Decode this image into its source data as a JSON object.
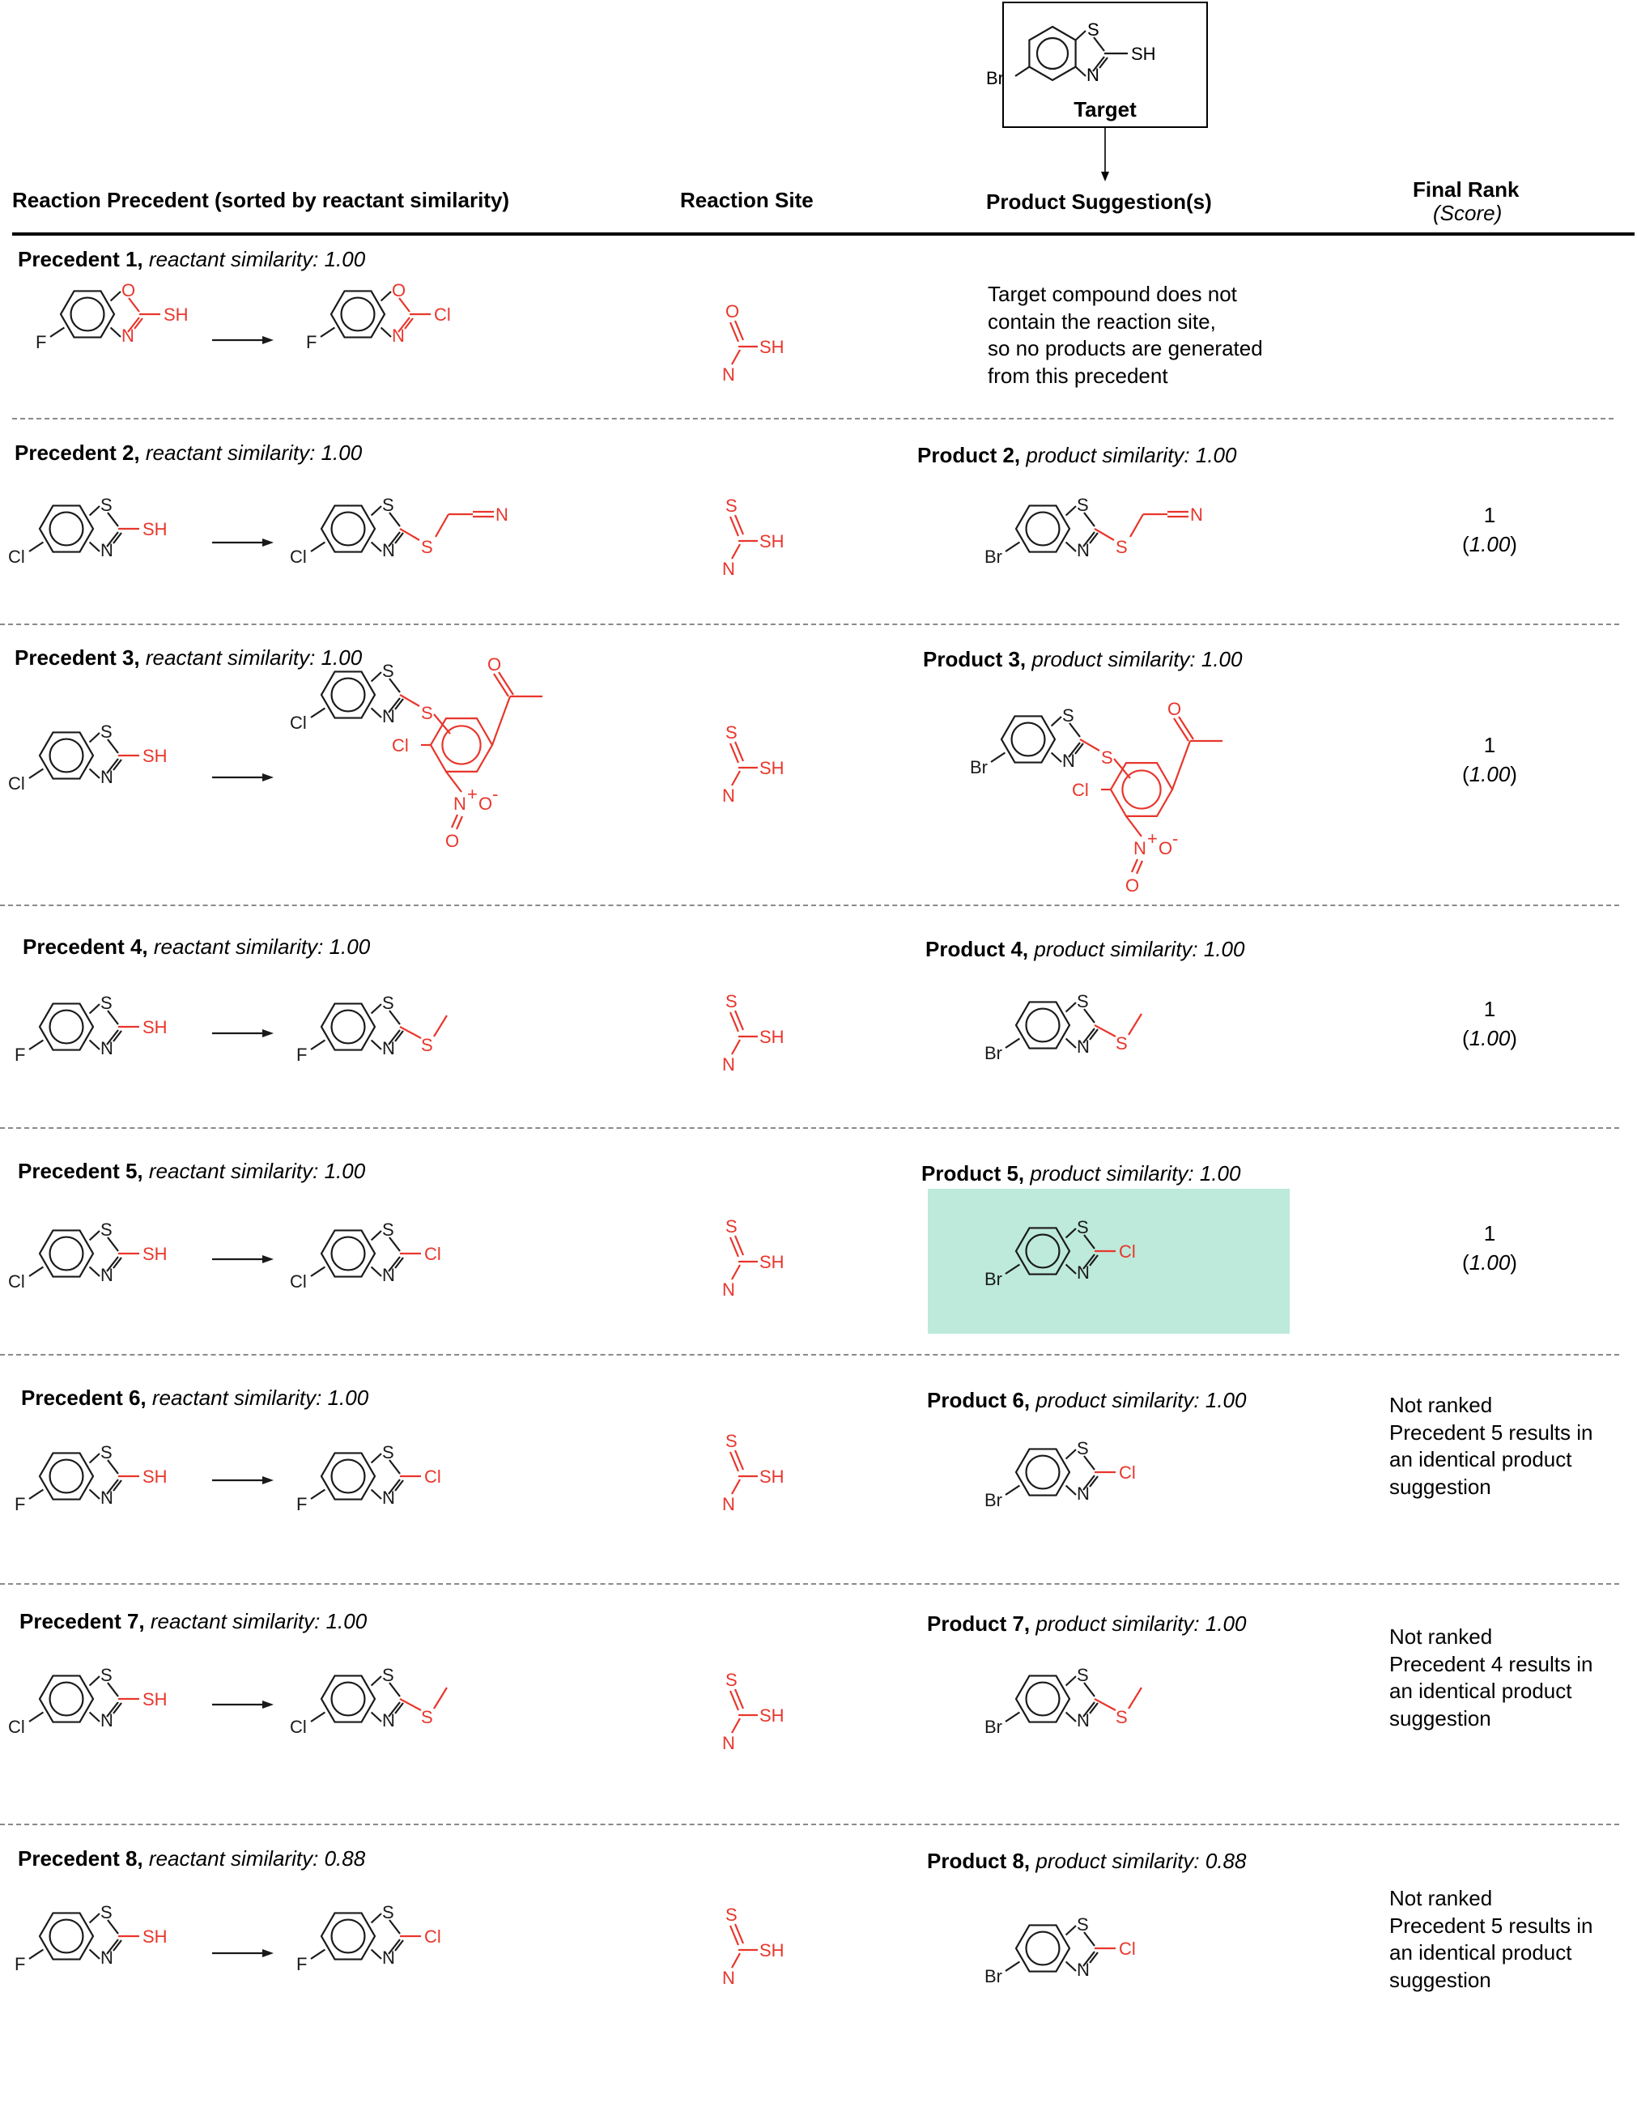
{
  "target": {
    "label": "Target",
    "substituent": "Br",
    "group": "SH"
  },
  "headers": {
    "precedent": "Reaction Precedent (sorted by reactant similarity)",
    "site": "Reaction Site",
    "product": "Product Suggestion(s)",
    "rank": "Final Rank",
    "score": "(Score)"
  },
  "rows": [
    {
      "prec_label": "Precedent 1,",
      "prec_sim": "reactant similarity: 1.00",
      "reactant": {
        "x": "F",
        "ring": "O",
        "group": "SH"
      },
      "product": {
        "x": "F",
        "ring": "O",
        "group": "Cl"
      },
      "site": {
        "top": "O",
        "right": "SH"
      },
      "note": [
        "Target compound does not",
        "contain the reaction site,",
        "so no products are generated",
        "from this precedent"
      ]
    },
    {
      "prec_label": "Precedent 2,",
      "prec_sim": "reactant similarity: 1.00",
      "reactant": {
        "x": "Cl",
        "group": "SH"
      },
      "product": {
        "x": "Cl",
        "group": "S",
        "tail": "N"
      },
      "site": {
        "top": "S",
        "right": "SH"
      },
      "prod_label": "Product 2,",
      "prod_sim": "product similarity: 1.00",
      "suggest": {
        "x": "Br",
        "group": "S",
        "tail": "N"
      },
      "rank": "1",
      "score": "1.00"
    },
    {
      "prec_label": "Precedent 3,",
      "prec_sim": "reactant similarity: 1.00",
      "reactant": {
        "x": "Cl",
        "group": "SH"
      },
      "product": {
        "x": "Cl",
        "group": "S",
        "cl": "Cl",
        "n": "N",
        "plus": "+",
        "o": "O",
        "ominus": "O",
        "minus": "-",
        "keto": "O"
      },
      "site": {
        "top": "S",
        "right": "SH"
      },
      "prod_label": "Product 3,",
      "prod_sim": "product similarity: 1.00",
      "suggest": {
        "x": "Br",
        "group": "S",
        "cl": "Cl",
        "n": "N",
        "plus": "+",
        "o": "O",
        "ominus": "O",
        "minus": "-",
        "keto": "O"
      },
      "rank": "1",
      "score": "1.00"
    },
    {
      "prec_label": "Precedent 4,",
      "prec_sim": "reactant similarity: 1.00",
      "reactant": {
        "x": "F",
        "group": "SH"
      },
      "product": {
        "x": "F",
        "group": "S"
      },
      "site": {
        "top": "S",
        "right": "SH"
      },
      "prod_label": "Product 4,",
      "prod_sim": "product similarity: 1.00",
      "suggest": {
        "x": "Br",
        "group": "S"
      },
      "rank": "1",
      "score": "1.00"
    },
    {
      "prec_label": "Precedent 5,",
      "prec_sim": "reactant similarity: 1.00",
      "reactant": {
        "x": "Cl",
        "group": "SH"
      },
      "product": {
        "x": "Cl",
        "group": "Cl"
      },
      "site": {
        "top": "S",
        "right": "SH"
      },
      "prod_label": "Product 5,",
      "prod_sim": "product similarity: 1.00",
      "suggest": {
        "x": "Br",
        "group": "Cl"
      },
      "rank": "1",
      "score": "1.00",
      "highlight_color": "#bdeada"
    },
    {
      "prec_label": "Precedent 6,",
      "prec_sim": "reactant similarity: 1.00",
      "reactant": {
        "x": "F",
        "group": "SH"
      },
      "product": {
        "x": "F",
        "group": "Cl"
      },
      "site": {
        "top": "S",
        "right": "SH"
      },
      "prod_label": "Product 6,",
      "prod_sim": "product similarity: 1.00",
      "suggest": {
        "x": "Br",
        "group": "Cl"
      },
      "note": [
        "Not ranked",
        "Precedent 5 results in",
        "an identical product",
        "suggestion"
      ]
    },
    {
      "prec_label": "Precedent 7,",
      "prec_sim": "reactant similarity: 1.00",
      "reactant": {
        "x": "Cl",
        "group": "SH"
      },
      "product": {
        "x": "Cl",
        "group": "S"
      },
      "site": {
        "top": "S",
        "right": "SH"
      },
      "prod_label": "Product 7,",
      "prod_sim": "product similarity: 1.00",
      "suggest": {
        "x": "Br",
        "group": "S"
      },
      "note": [
        "Not ranked",
        "Precedent 4 results in",
        "an identical product",
        "suggestion"
      ]
    },
    {
      "prec_label": "Precedent 8,",
      "prec_sim": "reactant similarity: 0.88",
      "reactant": {
        "x": "F",
        "group": "SH"
      },
      "product": {
        "x": "F",
        "group": "Cl"
      },
      "site": {
        "top": "S",
        "right": "SH"
      },
      "prod_label": "Product 8,",
      "prod_sim": "product similarity: 0.88",
      "suggest": {
        "x": "Br",
        "group": "Cl"
      },
      "note": [
        "Not ranked",
        "Precedent 5 results in",
        "an identical product",
        "suggestion"
      ]
    }
  ],
  "colors": {
    "highlight": "#bdeada",
    "reaction": "#e8362c",
    "bond": "#1a1a1a"
  }
}
